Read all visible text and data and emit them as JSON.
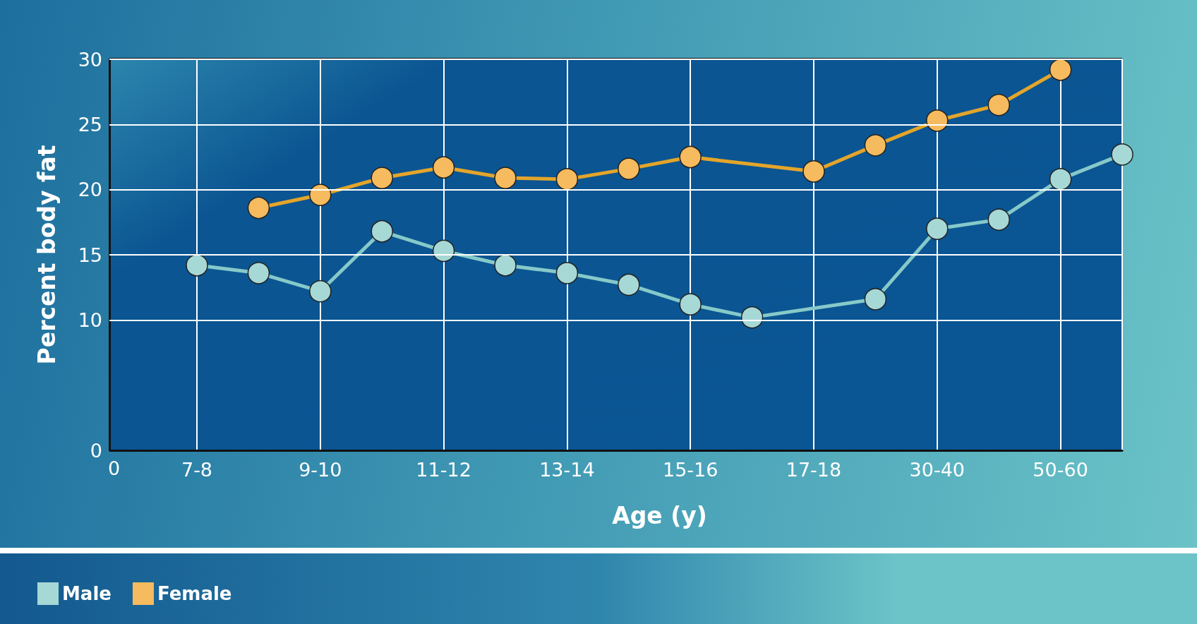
{
  "chart_data": {
    "type": "line",
    "xlabel": "Age (y)",
    "ylabel": "Percent body fat",
    "categories": [
      "7-8",
      null,
      "9-10",
      null,
      "11-12",
      null,
      "13-14",
      null,
      "15-16",
      null,
      "17-18",
      null,
      "30-40",
      null,
      "50-60",
      null
    ],
    "series": [
      {
        "name": "Male",
        "color": "#a6d8d6",
        "values": [
          14.2,
          13.6,
          12.2,
          16.8,
          15.3,
          14.2,
          13.6,
          12.7,
          11.2,
          10.2,
          null,
          11.6,
          17.0,
          17.7,
          20.8,
          22.7
        ]
      },
      {
        "name": "Female",
        "color": "#f5bb5e",
        "values": [
          null,
          18.6,
          19.6,
          20.9,
          21.7,
          20.9,
          20.8,
          21.6,
          22.5,
          null,
          21.4,
          23.4,
          25.3,
          26.5,
          29.2,
          null
        ]
      }
    ],
    "ylim": [
      0,
      30
    ],
    "yticks": [
      0,
      10,
      15,
      20,
      25,
      30
    ],
    "grid": true,
    "legend": "bottom left",
    "marker": "circle",
    "line_style": "solid",
    "annotations": [
      "0"
    ]
  }
}
